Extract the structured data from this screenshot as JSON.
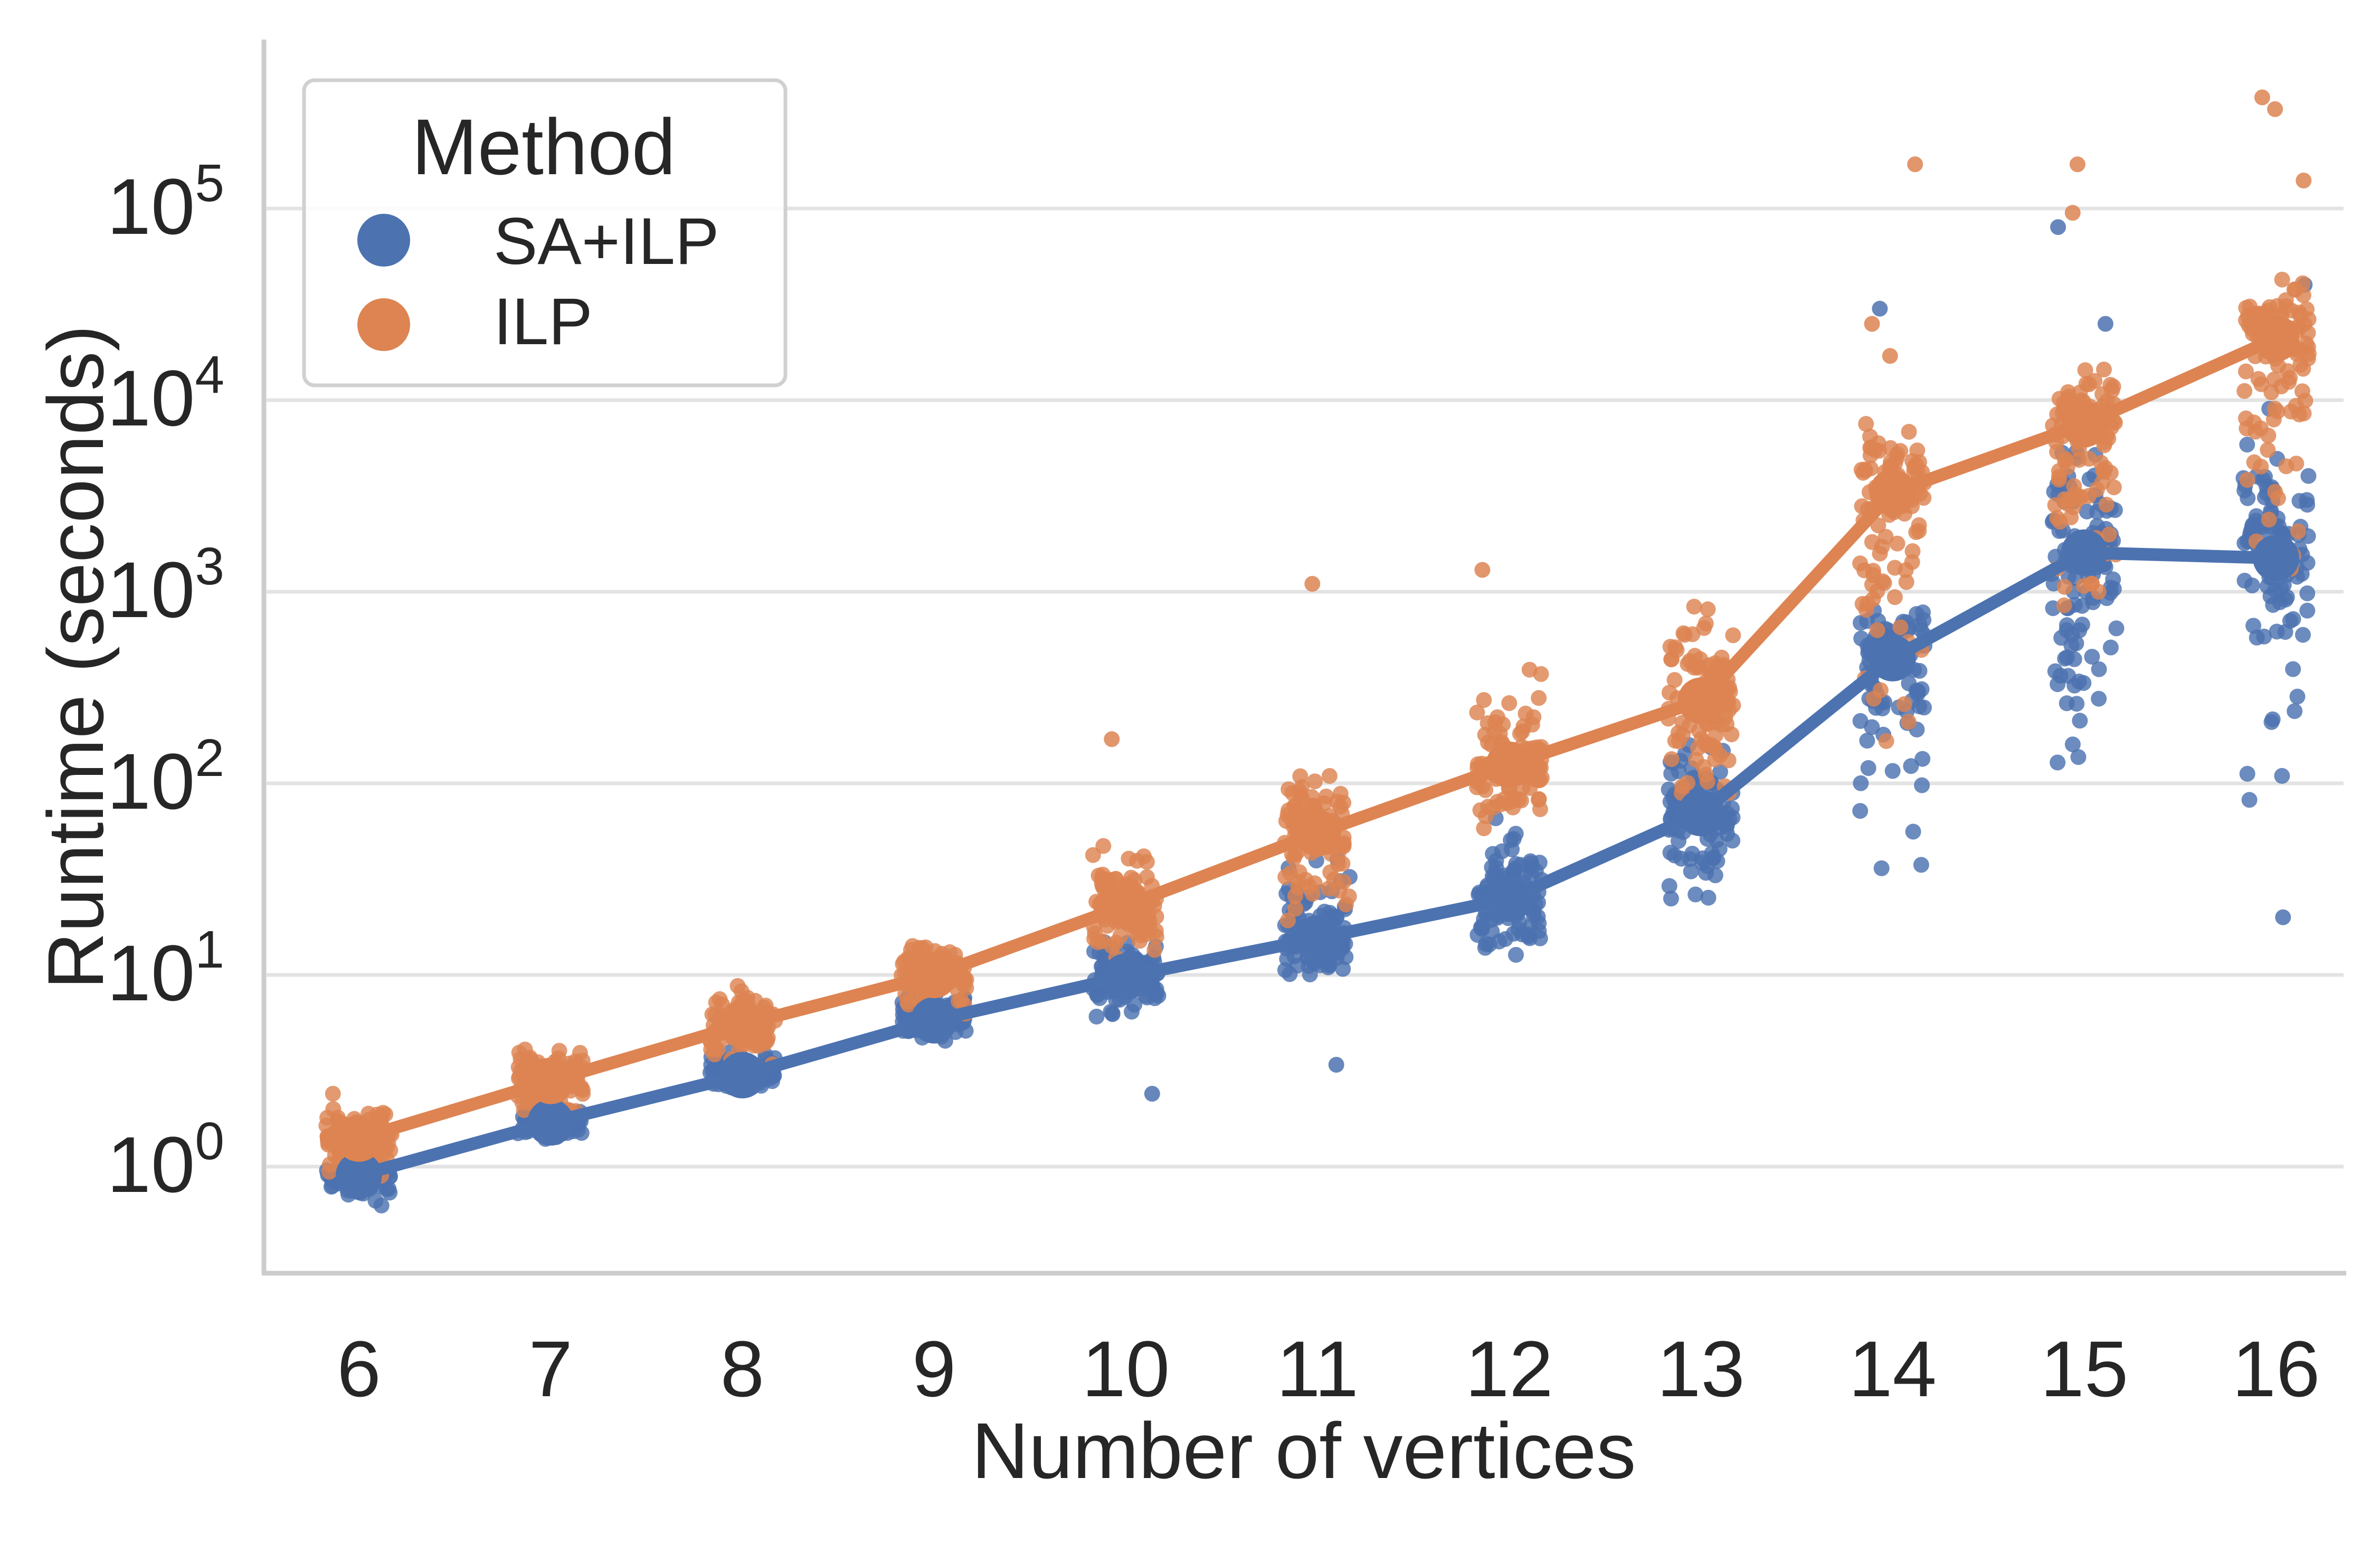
{
  "chart_data": {
    "type": "line",
    "xlabel": "Number of vertices",
    "ylabel": "Runtime (seconds)",
    "yscale": "log",
    "ylim": [
      0.28,
      600000
    ],
    "y_tick_base": "10",
    "y_tick_exponents": [
      "0",
      "1",
      "2",
      "3",
      "4",
      "5"
    ],
    "categories": [
      "6",
      "7",
      "8",
      "9",
      "10",
      "11",
      "12",
      "13",
      "14",
      "15",
      "16"
    ],
    "grid": "horizontal",
    "legend": {
      "title": "Method",
      "placement": "top-left",
      "entries": [
        "SA+ILP",
        "ILP"
      ]
    },
    "series": [
      {
        "name": "SA+ILP",
        "color": "#4c72b0",
        "mean": [
          0.9,
          1.7,
          3.0,
          5.8,
          9.8,
          15.5,
          25,
          70,
          450,
          1600,
          1500
        ],
        "spread_log10": [
          [
            -0.25,
            0.05
          ],
          [
            -0.12,
            0.2
          ],
          [
            -0.12,
            0.25
          ],
          [
            -0.2,
            0.25
          ],
          [
            -0.4,
            0.3
          ],
          [
            -0.35,
            0.6
          ],
          [
            -0.55,
            0.8
          ],
          [
            -0.8,
            0.75
          ],
          [
            -1.5,
            0.5
          ],
          [
            -1.8,
            1.1
          ],
          [
            -1.9,
            1.1
          ]
        ],
        "outliers": [
          [
            11,
            3.4
          ],
          [
            10,
            2.4
          ],
          [
            14,
            30000
          ],
          [
            15,
            80000
          ],
          [
            15,
            25000
          ],
          [
            16,
            40000
          ],
          [
            16,
            20
          ]
        ]
      },
      {
        "name": "ILP",
        "color": "#dd8452",
        "mean": [
          1.4,
          2.8,
          5.5,
          10,
          23,
          55,
          125,
          270,
          3300,
          7500,
          21000
        ],
        "spread_log10": [
          [
            -0.35,
            0.3
          ],
          [
            -0.35,
            0.32
          ],
          [
            -0.4,
            0.35
          ],
          [
            -0.35,
            0.35
          ],
          [
            -0.45,
            0.5
          ],
          [
            -0.7,
            0.55
          ],
          [
            -0.6,
            0.75
          ],
          [
            -0.9,
            0.85
          ],
          [
            -2.0,
            0.5
          ],
          [
            -1.8,
            0.6
          ],
          [
            -2.0,
            0.6
          ]
        ],
        "outliers": [
          [
            11,
            1100
          ],
          [
            10,
            170
          ],
          [
            12,
            1300
          ],
          [
            14,
            170000
          ],
          [
            14,
            25000
          ],
          [
            14,
            17000
          ],
          [
            15,
            170000
          ],
          [
            15,
            95000
          ],
          [
            16,
            380000
          ],
          [
            16,
            330000
          ],
          [
            16,
            140000
          ]
        ]
      }
    ]
  }
}
